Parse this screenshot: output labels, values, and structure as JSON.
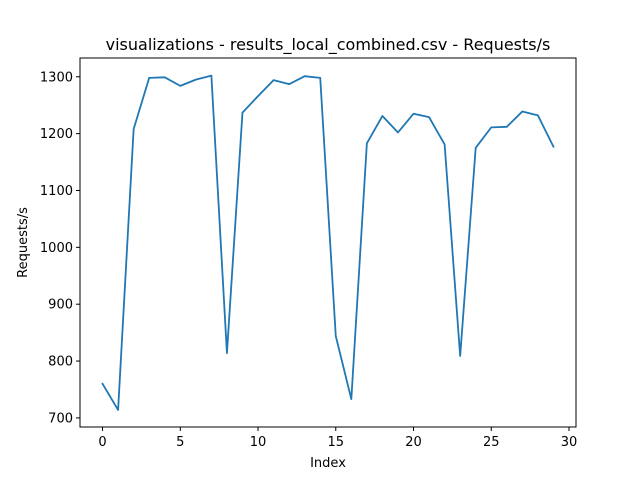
{
  "chart_data": {
    "type": "line",
    "title": "visualizations - results_local_combined.csv - Requests/s",
    "xlabel": "Index",
    "ylabel": "Requests/s",
    "xlim": [
      -1.45,
      30.45
    ],
    "ylim": [
      684,
      1333
    ],
    "xticks": [
      0,
      5,
      10,
      15,
      20,
      25,
      30
    ],
    "yticks": [
      700,
      800,
      900,
      1000,
      1100,
      1200,
      1300
    ],
    "grid": false,
    "series": [
      {
        "color": "#1f77b4",
        "x": [
          0,
          1,
          2,
          3,
          4,
          5,
          6,
          7,
          8,
          9,
          10,
          11,
          12,
          13,
          14,
          15,
          16,
          17,
          18,
          19,
          20,
          21,
          22,
          23,
          24,
          25,
          26,
          27,
          28,
          29
        ],
        "y": [
          760,
          714,
          1208,
          1298,
          1299,
          1284,
          1295,
          1302,
          814,
          1237,
          1266,
          1294,
          1287,
          1301,
          1298,
          844,
          733,
          1183,
          1231,
          1202,
          1235,
          1229,
          1181,
          809,
          1175,
          1211,
          1212,
          1239,
          1232,
          1177
        ]
      }
    ]
  }
}
